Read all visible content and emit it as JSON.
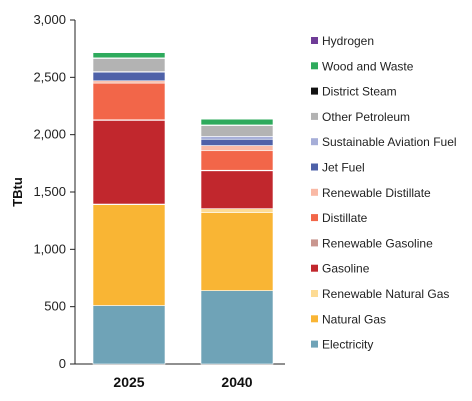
{
  "chart_data": {
    "type": "bar",
    "stacked": true,
    "ylabel": "TBtu",
    "xlabel": "",
    "ylim": [
      0,
      3000
    ],
    "yticks": [
      0,
      500,
      1000,
      1500,
      2000,
      2500,
      3000
    ],
    "ytick_labels": [
      "0",
      "500",
      "1,000",
      "1,500",
      "2,000",
      "2,500",
      "3,000"
    ],
    "categories": [
      "2025",
      "2040"
    ],
    "legend_position": "right",
    "grid": false,
    "series": [
      {
        "name": "Electricity",
        "color": "#6fa3b7",
        "values": [
          510,
          640
        ]
      },
      {
        "name": "Natural Gas",
        "color": "#f9b534",
        "values": [
          880,
          680
        ]
      },
      {
        "name": "Renewable Natural Gas",
        "color": "#fddb94",
        "values": [
          5,
          35
        ]
      },
      {
        "name": "Gasoline",
        "color": "#c1272d",
        "values": [
          730,
          330
        ]
      },
      {
        "name": "Renewable Gasoline",
        "color": "#c9968f",
        "values": [
          5,
          5
        ]
      },
      {
        "name": "Distillate",
        "color": "#f26649",
        "values": [
          320,
          170
        ]
      },
      {
        "name": "Renewable Distillate",
        "color": "#f9b9a5",
        "values": [
          20,
          45
        ]
      },
      {
        "name": "Jet Fuel",
        "color": "#4e61a8",
        "values": [
          75,
          55
        ]
      },
      {
        "name": "Sustainable Aviation Fuel",
        "color": "#a6aed8",
        "values": [
          5,
          25
        ]
      },
      {
        "name": "Other Petroleum",
        "color": "#b3b3b3",
        "values": [
          115,
          95
        ]
      },
      {
        "name": "District Steam",
        "color": "#111111",
        "values": [
          5,
          5
        ]
      },
      {
        "name": "Wood and Waste",
        "color": "#2eaa5c",
        "values": [
          45,
          50
        ]
      },
      {
        "name": "Hydrogen",
        "color": "#6f3c97",
        "values": [
          0,
          0
        ]
      }
    ]
  }
}
